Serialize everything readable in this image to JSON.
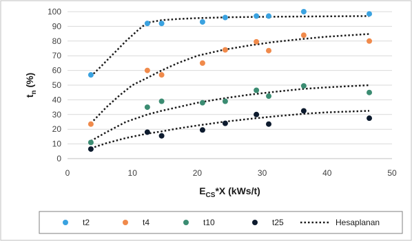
{
  "chart_data": {
    "type": "scatter",
    "xlabel": {
      "main": "E",
      "sub": "CS",
      "rest": "*X (kWs/t)"
    },
    "ylabel": {
      "main": "t",
      "sub": "n",
      "rest": " (%)"
    },
    "xlim": [
      0,
      50
    ],
    "ylim": [
      0,
      100
    ],
    "xticks": [
      0,
      10,
      20,
      30,
      40,
      50
    ],
    "yticks": [
      0,
      10,
      20,
      30,
      40,
      50,
      60,
      70,
      80,
      90,
      100
    ],
    "grid": "horizontal",
    "legend_position": "bottom",
    "series": [
      {
        "name": "t2",
        "color": "#3aa2e0",
        "marker": "dot",
        "points": [
          [
            3.6,
            57
          ],
          [
            12.3,
            92
          ],
          [
            14.5,
            92
          ],
          [
            20.8,
            93
          ],
          [
            24.3,
            96
          ],
          [
            29.1,
            97
          ],
          [
            31,
            97
          ],
          [
            36.4,
            100
          ],
          [
            46.5,
            98.5
          ]
        ]
      },
      {
        "name": "t4",
        "color": "#f08a4b",
        "marker": "dot",
        "points": [
          [
            3.6,
            23.5
          ],
          [
            12.3,
            60
          ],
          [
            14.5,
            57
          ],
          [
            20.8,
            65
          ],
          [
            24.3,
            74
          ],
          [
            29.1,
            79.5
          ],
          [
            31,
            73.5
          ],
          [
            36.4,
            84
          ],
          [
            46.5,
            80
          ]
        ]
      },
      {
        "name": "t10",
        "color": "#3b8c72",
        "marker": "dot",
        "points": [
          [
            3.6,
            11
          ],
          [
            12.3,
            35
          ],
          [
            14.5,
            39
          ],
          [
            20.8,
            38
          ],
          [
            24.3,
            39
          ],
          [
            29.1,
            46.5
          ],
          [
            31,
            42.5
          ],
          [
            36.4,
            49.5
          ],
          [
            46.5,
            45
          ]
        ]
      },
      {
        "name": "t25",
        "color": "#0d1b2e",
        "marker": "dot",
        "points": [
          [
            3.6,
            6.5
          ],
          [
            12.3,
            18
          ],
          [
            14.5,
            15.5
          ],
          [
            20.8,
            19.5
          ],
          [
            24.3,
            24
          ],
          [
            29.1,
            30
          ],
          [
            31,
            23.5
          ],
          [
            36.4,
            32.5
          ],
          [
            46.5,
            27.5
          ]
        ]
      },
      {
        "name": "Hesaplanan",
        "color": "#1a1a1a",
        "marker": "dotted-line",
        "curves": [
          [
            [
              3.6,
              56
            ],
            [
              5,
              62
            ],
            [
              7,
              71
            ],
            [
              9,
              80
            ],
            [
              11,
              88
            ],
            [
              12.3,
              92.5
            ],
            [
              14.5,
              94.2
            ],
            [
              17,
              95
            ],
            [
              20,
              95.6
            ],
            [
              25,
              96.2
            ],
            [
              30,
              96.5
            ],
            [
              35,
              96.7
            ],
            [
              40,
              96.8
            ],
            [
              46.5,
              97
            ]
          ],
          [
            [
              3.6,
              24
            ],
            [
              6,
              35
            ],
            [
              8,
              43
            ],
            [
              10,
              50
            ],
            [
              12.3,
              55
            ],
            [
              14.5,
              60
            ],
            [
              17,
              65
            ],
            [
              20,
              70
            ],
            [
              24,
              74
            ],
            [
              28,
              77
            ],
            [
              32,
              79.5
            ],
            [
              36.4,
              81.5
            ],
            [
              40,
              83
            ],
            [
              46.5,
              84.8
            ]
          ],
          [
            [
              3.6,
              12
            ],
            [
              6,
              18
            ],
            [
              9,
              25
            ],
            [
              12.3,
              30
            ],
            [
              14.5,
              32.5
            ],
            [
              17,
              35
            ],
            [
              20,
              38
            ],
            [
              24,
              41
            ],
            [
              28,
              43.5
            ],
            [
              32,
              45.5
            ],
            [
              36.4,
              47.5
            ],
            [
              40,
              48.5
            ],
            [
              46.5,
              50
            ]
          ],
          [
            [
              3.6,
              7
            ],
            [
              6,
              10.5
            ],
            [
              9,
              14
            ],
            [
              12.3,
              17
            ],
            [
              14.5,
              18.5
            ],
            [
              17,
              20.5
            ],
            [
              20,
              22.5
            ],
            [
              24,
              25
            ],
            [
              28,
              27
            ],
            [
              32,
              28.8
            ],
            [
              36.4,
              30.5
            ],
            [
              40,
              31.5
            ],
            [
              46.5,
              32.5
            ]
          ]
        ]
      }
    ]
  }
}
